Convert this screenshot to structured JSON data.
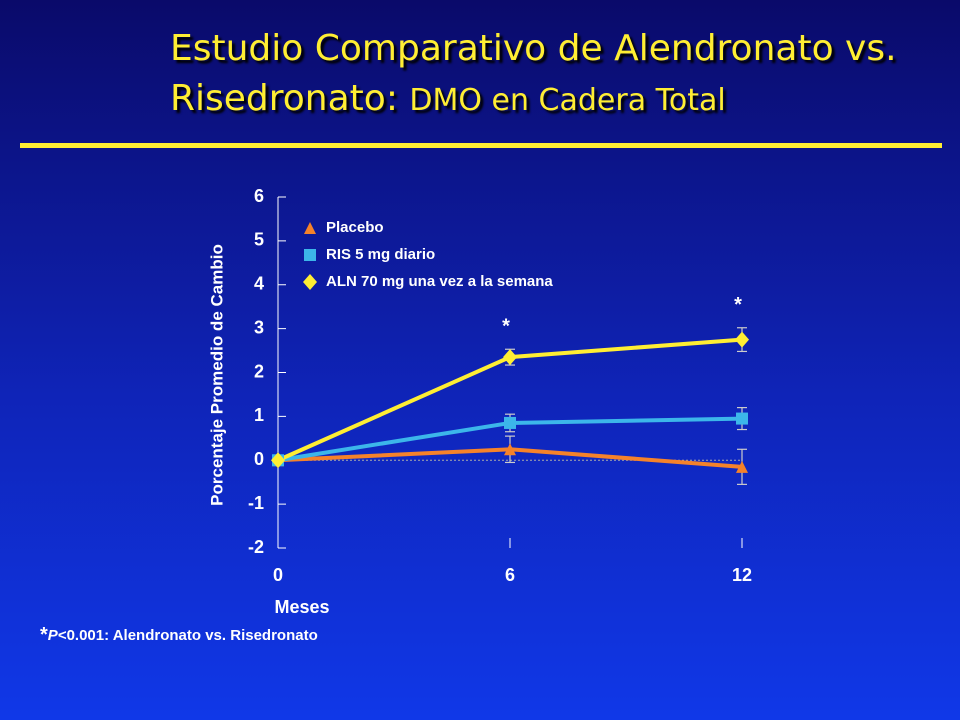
{
  "header": {
    "title_line1": "Estudio Comparativo de Alendronato vs.",
    "title_line2a": "Risedronato:",
    "title_line2b": "DMO en Cadera Total"
  },
  "chart_data": {
    "type": "line",
    "x": [
      0,
      6,
      12
    ],
    "xlim": [
      0,
      12
    ],
    "xticks": [
      0,
      6,
      12
    ],
    "ylim": [
      -2,
      6
    ],
    "yticks": [
      -2,
      -1,
      0,
      1,
      2,
      3,
      4,
      5,
      6
    ],
    "x_label": "Meses",
    "y_label": "Porcentaje Promedio de Cambio",
    "series": [
      {
        "name": "Placebo",
        "color": "#f5822a",
        "marker": "triangle",
        "values": [
          0,
          0.25,
          -0.15
        ],
        "errors": [
          null,
          0.3,
          0.4
        ]
      },
      {
        "name": "RIS 5 mg diario",
        "color": "#3cb6ea",
        "marker": "square",
        "values": [
          0,
          0.85,
          0.95
        ],
        "errors": [
          null,
          0.2,
          0.25
        ]
      },
      {
        "name": "ALN 70 mg una vez a la semana",
        "color": "#ffee33",
        "marker": "diamond",
        "values": [
          0,
          2.35,
          2.75
        ],
        "errors": [
          null,
          0.18,
          0.27
        ]
      }
    ],
    "annotations": [
      {
        "x": 6,
        "text": "*"
      },
      {
        "x": 12,
        "text": "*"
      }
    ],
    "footnote": {
      "marker": "*",
      "p": "P",
      "text": "<0.001: Alendronato vs. Risedronato"
    }
  }
}
